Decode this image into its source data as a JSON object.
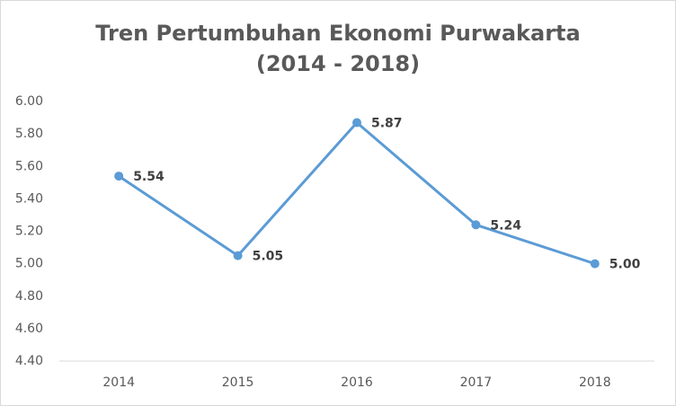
{
  "chart_data": {
    "type": "line",
    "title": "Tren Pertumbuhan Ekonomi Purwakarta",
    "subtitle": "(2014 - 2018)",
    "categories": [
      "2014",
      "2015",
      "2016",
      "2017",
      "2018"
    ],
    "values": [
      5.54,
      5.05,
      5.87,
      5.24,
      5.0
    ],
    "value_labels": [
      "5.54",
      "5.05",
      "5.87",
      "5.24",
      "5.00"
    ],
    "color": "#5b9bd5",
    "ylim": [
      4.4,
      6.0
    ],
    "yticks": [
      {
        "value": 4.4,
        "label": "4.40"
      },
      {
        "value": 4.6,
        "label": "4.60"
      },
      {
        "value": 4.8,
        "label": "4.80"
      },
      {
        "value": 5.0,
        "label": "5.00"
      },
      {
        "value": 5.2,
        "label": "5.20"
      },
      {
        "value": 5.4,
        "label": "5.40"
      },
      {
        "value": 5.6,
        "label": "5.60"
      },
      {
        "value": 5.8,
        "label": "5.80"
      },
      {
        "value": 6.0,
        "label": "6.00"
      }
    ],
    "grid": false
  }
}
